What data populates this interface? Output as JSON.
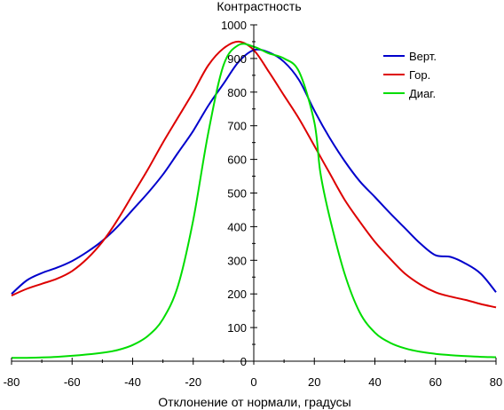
{
  "chart_data": {
    "type": "line",
    "title": "",
    "xlabel": "Отклонение от нормали, градусы",
    "ylabel": "Контрастность",
    "xlim": [
      -80,
      80
    ],
    "ylim": [
      0,
      1000
    ],
    "xticks": [
      -80,
      -60,
      -40,
      -20,
      0,
      20,
      40,
      60,
      80
    ],
    "yticks": [
      0,
      100,
      200,
      300,
      400,
      500,
      600,
      700,
      800,
      900,
      1000
    ],
    "grid": false,
    "legend_position": "top-right",
    "series": [
      {
        "name": "Верт.",
        "color": "#0000cc",
        "x": [
          -80,
          -75,
          -70,
          -65,
          -60,
          -55,
          -50,
          -45,
          -40,
          -35,
          -30,
          -25,
          -20,
          -15,
          -10,
          -5,
          0,
          5,
          10,
          15,
          20,
          25,
          30,
          35,
          40,
          45,
          50,
          55,
          60,
          65,
          70,
          75,
          80
        ],
        "y": [
          200,
          240,
          262,
          278,
          298,
          325,
          358,
          400,
          450,
          500,
          555,
          620,
          685,
          760,
          825,
          890,
          925,
          918,
          890,
          835,
          745,
          665,
          595,
          535,
          488,
          440,
          395,
          350,
          315,
          310,
          290,
          260,
          205
        ]
      },
      {
        "name": "Гор.",
        "color": "#dd0000",
        "x": [
          -80,
          -75,
          -70,
          -65,
          -60,
          -55,
          -50,
          -45,
          -40,
          -35,
          -30,
          -25,
          -20,
          -15,
          -10,
          -5,
          0,
          5,
          10,
          15,
          20,
          25,
          30,
          35,
          40,
          45,
          50,
          55,
          60,
          65,
          70,
          75,
          80
        ],
        "y": [
          195,
          215,
          230,
          245,
          268,
          305,
          355,
          420,
          495,
          570,
          650,
          725,
          800,
          880,
          930,
          950,
          925,
          860,
          790,
          720,
          640,
          560,
          480,
          415,
          355,
          305,
          260,
          228,
          205,
          192,
          182,
          170,
          160
        ]
      },
      {
        "name": "Диаг.",
        "color": "#00dd00",
        "x": [
          -80,
          -75,
          -70,
          -65,
          -60,
          -55,
          -50,
          -45,
          -40,
          -35,
          -30,
          -25,
          -20,
          -15,
          -10,
          -5,
          0,
          5,
          10,
          15,
          20,
          22,
          25,
          30,
          35,
          40,
          45,
          50,
          55,
          60,
          65,
          70,
          75,
          80
        ],
        "y": [
          10,
          10,
          11,
          13,
          16,
          20,
          25,
          33,
          48,
          75,
          125,
          225,
          420,
          680,
          880,
          940,
          935,
          915,
          900,
          860,
          710,
          560,
          430,
          260,
          145,
          85,
          55,
          38,
          28,
          22,
          18,
          15,
          13,
          12
        ]
      }
    ]
  }
}
